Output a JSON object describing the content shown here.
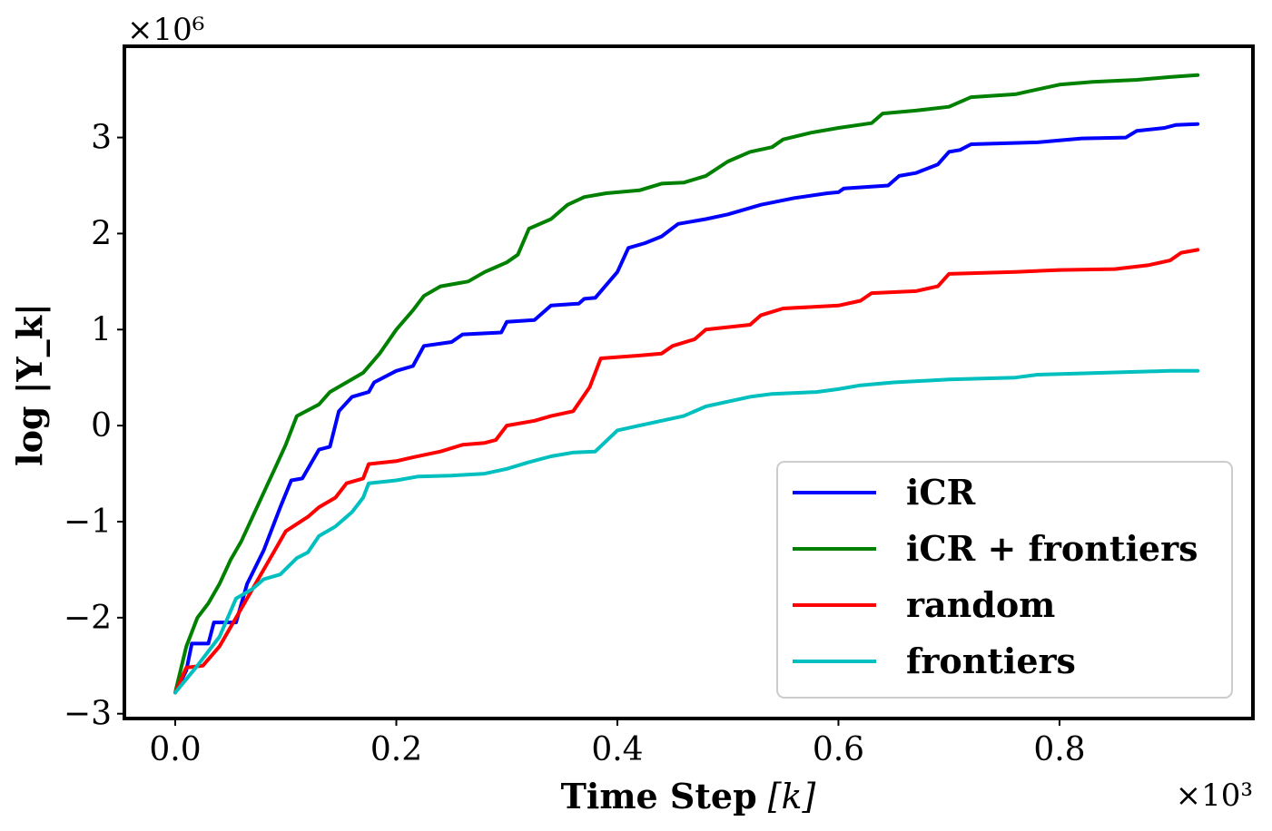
{
  "chart_data": {
    "type": "line",
    "xlabel_main": "Time Step",
    "xlabel_var": "[k]",
    "ylabel": "log |Y_k|",
    "x_multiplier": "×10³",
    "y_multiplier": "×10⁶",
    "xlim": [
      -0.046,
      0.975
    ],
    "ylim": [
      -3.05,
      3.95
    ],
    "xticks": [
      0.0,
      0.2,
      0.4,
      0.6,
      0.8
    ],
    "xtick_labels": [
      "0.0",
      "0.2",
      "0.4",
      "0.6",
      "0.8"
    ],
    "yticks": [
      -3,
      -2,
      -1,
      0,
      1,
      2,
      3
    ],
    "ytick_labels": [
      "−3",
      "−2",
      "−1",
      "0",
      "1",
      "2",
      "3"
    ],
    "legend_position": "lower-right",
    "series": [
      {
        "name": "iCR",
        "color": "#0000ff",
        "points": [
          [
            0.0,
            -2.78
          ],
          [
            0.01,
            -2.55
          ],
          [
            0.015,
            -2.27
          ],
          [
            0.03,
            -2.27
          ],
          [
            0.035,
            -2.05
          ],
          [
            0.055,
            -2.05
          ],
          [
            0.065,
            -1.65
          ],
          [
            0.08,
            -1.3
          ],
          [
            0.095,
            -0.85
          ],
          [
            0.105,
            -0.57
          ],
          [
            0.115,
            -0.55
          ],
          [
            0.13,
            -0.25
          ],
          [
            0.14,
            -0.22
          ],
          [
            0.148,
            0.15
          ],
          [
            0.16,
            0.3
          ],
          [
            0.175,
            0.35
          ],
          [
            0.18,
            0.45
          ],
          [
            0.2,
            0.57
          ],
          [
            0.215,
            0.62
          ],
          [
            0.225,
            0.83
          ],
          [
            0.25,
            0.87
          ],
          [
            0.26,
            0.95
          ],
          [
            0.295,
            0.97
          ],
          [
            0.3,
            1.08
          ],
          [
            0.325,
            1.1
          ],
          [
            0.34,
            1.25
          ],
          [
            0.365,
            1.27
          ],
          [
            0.37,
            1.32
          ],
          [
            0.38,
            1.33
          ],
          [
            0.4,
            1.6
          ],
          [
            0.41,
            1.85
          ],
          [
            0.425,
            1.9
          ],
          [
            0.44,
            1.97
          ],
          [
            0.455,
            2.1
          ],
          [
            0.48,
            2.15
          ],
          [
            0.5,
            2.2
          ],
          [
            0.53,
            2.3
          ],
          [
            0.56,
            2.37
          ],
          [
            0.59,
            2.42
          ],
          [
            0.6,
            2.43
          ],
          [
            0.605,
            2.47
          ],
          [
            0.645,
            2.5
          ],
          [
            0.655,
            2.6
          ],
          [
            0.67,
            2.63
          ],
          [
            0.69,
            2.72
          ],
          [
            0.7,
            2.85
          ],
          [
            0.71,
            2.87
          ],
          [
            0.72,
            2.93
          ],
          [
            0.78,
            2.95
          ],
          [
            0.8,
            2.97
          ],
          [
            0.82,
            2.99
          ],
          [
            0.86,
            3.0
          ],
          [
            0.87,
            3.07
          ],
          [
            0.895,
            3.1
          ],
          [
            0.905,
            3.13
          ],
          [
            0.925,
            3.14
          ]
        ]
      },
      {
        "name": "iCR + frontiers",
        "color": "#008000",
        "points": [
          [
            0.0,
            -2.78
          ],
          [
            0.01,
            -2.3
          ],
          [
            0.02,
            -2.0
          ],
          [
            0.03,
            -1.85
          ],
          [
            0.04,
            -1.65
          ],
          [
            0.05,
            -1.4
          ],
          [
            0.06,
            -1.2
          ],
          [
            0.07,
            -0.95
          ],
          [
            0.08,
            -0.7
          ],
          [
            0.09,
            -0.45
          ],
          [
            0.1,
            -0.2
          ],
          [
            0.11,
            0.1
          ],
          [
            0.13,
            0.22
          ],
          [
            0.14,
            0.35
          ],
          [
            0.155,
            0.45
          ],
          [
            0.17,
            0.55
          ],
          [
            0.185,
            0.75
          ],
          [
            0.2,
            1.0
          ],
          [
            0.215,
            1.2
          ],
          [
            0.225,
            1.35
          ],
          [
            0.24,
            1.45
          ],
          [
            0.265,
            1.5
          ],
          [
            0.28,
            1.6
          ],
          [
            0.29,
            1.65
          ],
          [
            0.3,
            1.7
          ],
          [
            0.31,
            1.78
          ],
          [
            0.32,
            2.05
          ],
          [
            0.34,
            2.15
          ],
          [
            0.355,
            2.3
          ],
          [
            0.37,
            2.38
          ],
          [
            0.39,
            2.42
          ],
          [
            0.42,
            2.45
          ],
          [
            0.44,
            2.52
          ],
          [
            0.46,
            2.53
          ],
          [
            0.48,
            2.6
          ],
          [
            0.5,
            2.75
          ],
          [
            0.52,
            2.85
          ],
          [
            0.54,
            2.9
          ],
          [
            0.55,
            2.98
          ],
          [
            0.575,
            3.05
          ],
          [
            0.6,
            3.1
          ],
          [
            0.63,
            3.15
          ],
          [
            0.64,
            3.25
          ],
          [
            0.67,
            3.28
          ],
          [
            0.7,
            3.32
          ],
          [
            0.72,
            3.42
          ],
          [
            0.76,
            3.45
          ],
          [
            0.78,
            3.5
          ],
          [
            0.8,
            3.55
          ],
          [
            0.83,
            3.58
          ],
          [
            0.87,
            3.6
          ],
          [
            0.9,
            3.63
          ],
          [
            0.925,
            3.65
          ]
        ]
      },
      {
        "name": "random",
        "color": "#ff0000",
        "points": [
          [
            0.0,
            -2.78
          ],
          [
            0.01,
            -2.52
          ],
          [
            0.025,
            -2.5
          ],
          [
            0.04,
            -2.3
          ],
          [
            0.055,
            -2.0
          ],
          [
            0.075,
            -1.6
          ],
          [
            0.09,
            -1.3
          ],
          [
            0.1,
            -1.1
          ],
          [
            0.12,
            -0.95
          ],
          [
            0.13,
            -0.85
          ],
          [
            0.145,
            -0.75
          ],
          [
            0.155,
            -0.6
          ],
          [
            0.17,
            -0.55
          ],
          [
            0.175,
            -0.4
          ],
          [
            0.2,
            -0.37
          ],
          [
            0.215,
            -0.33
          ],
          [
            0.24,
            -0.27
          ],
          [
            0.26,
            -0.2
          ],
          [
            0.28,
            -0.18
          ],
          [
            0.29,
            -0.15
          ],
          [
            0.3,
            0.0
          ],
          [
            0.325,
            0.05
          ],
          [
            0.34,
            0.1
          ],
          [
            0.36,
            0.15
          ],
          [
            0.375,
            0.4
          ],
          [
            0.385,
            0.7
          ],
          [
            0.42,
            0.73
          ],
          [
            0.44,
            0.75
          ],
          [
            0.45,
            0.83
          ],
          [
            0.47,
            0.9
          ],
          [
            0.48,
            1.0
          ],
          [
            0.52,
            1.05
          ],
          [
            0.53,
            1.15
          ],
          [
            0.55,
            1.22
          ],
          [
            0.6,
            1.25
          ],
          [
            0.62,
            1.3
          ],
          [
            0.63,
            1.38
          ],
          [
            0.67,
            1.4
          ],
          [
            0.69,
            1.45
          ],
          [
            0.7,
            1.58
          ],
          [
            0.76,
            1.6
          ],
          [
            0.8,
            1.62
          ],
          [
            0.85,
            1.63
          ],
          [
            0.88,
            1.67
          ],
          [
            0.9,
            1.72
          ],
          [
            0.91,
            1.8
          ],
          [
            0.925,
            1.83
          ]
        ]
      },
      {
        "name": "frontiers",
        "color": "#00bfbf",
        "points": [
          [
            0.0,
            -2.78
          ],
          [
            0.02,
            -2.5
          ],
          [
            0.04,
            -2.2
          ],
          [
            0.055,
            -1.8
          ],
          [
            0.07,
            -1.7
          ],
          [
            0.08,
            -1.6
          ],
          [
            0.095,
            -1.55
          ],
          [
            0.11,
            -1.38
          ],
          [
            0.12,
            -1.32
          ],
          [
            0.13,
            -1.15
          ],
          [
            0.145,
            -1.05
          ],
          [
            0.16,
            -0.9
          ],
          [
            0.17,
            -0.75
          ],
          [
            0.175,
            -0.6
          ],
          [
            0.2,
            -0.57
          ],
          [
            0.22,
            -0.53
          ],
          [
            0.25,
            -0.52
          ],
          [
            0.28,
            -0.5
          ],
          [
            0.3,
            -0.45
          ],
          [
            0.32,
            -0.38
          ],
          [
            0.34,
            -0.32
          ],
          [
            0.36,
            -0.28
          ],
          [
            0.38,
            -0.27
          ],
          [
            0.4,
            -0.05
          ],
          [
            0.42,
            0.0
          ],
          [
            0.44,
            0.05
          ],
          [
            0.46,
            0.1
          ],
          [
            0.48,
            0.2
          ],
          [
            0.5,
            0.25
          ],
          [
            0.52,
            0.3
          ],
          [
            0.54,
            0.33
          ],
          [
            0.58,
            0.35
          ],
          [
            0.6,
            0.38
          ],
          [
            0.62,
            0.42
          ],
          [
            0.65,
            0.45
          ],
          [
            0.7,
            0.48
          ],
          [
            0.76,
            0.5
          ],
          [
            0.78,
            0.53
          ],
          [
            0.84,
            0.55
          ],
          [
            0.9,
            0.57
          ],
          [
            0.925,
            0.57
          ]
        ]
      }
    ]
  }
}
